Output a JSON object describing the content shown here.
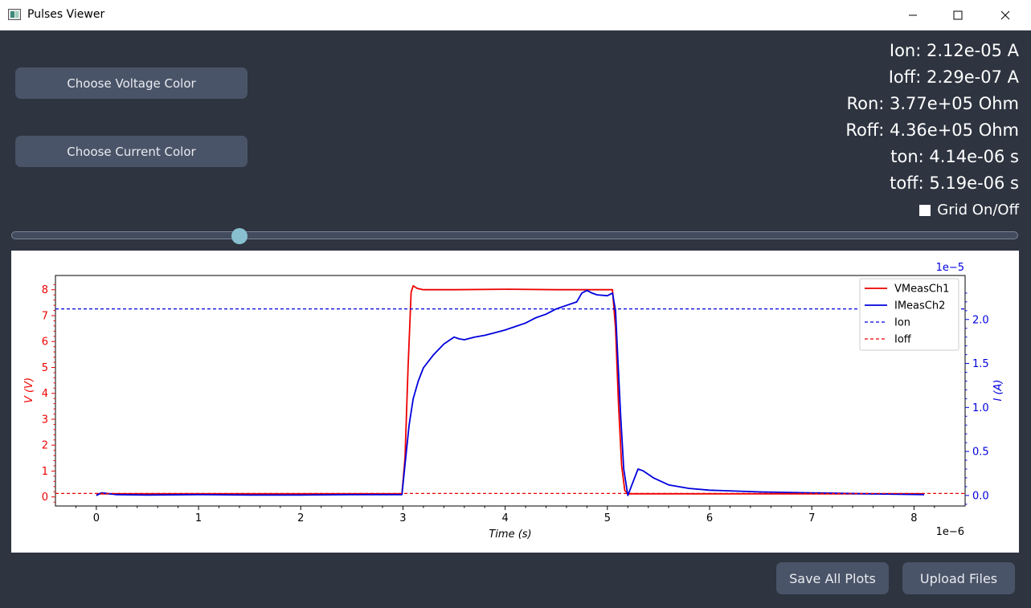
{
  "window": {
    "title": "Pulses Viewer"
  },
  "controls": {
    "voltage_color_label": "Choose Voltage Color",
    "current_color_label": "Choose Current Color",
    "grid_toggle_label": "Grid On/Off",
    "save_all_label": "Save All Plots",
    "upload_label": "Upload Files",
    "slider_value": 0.227
  },
  "stats": {
    "ion": "Ion: 2.12e-05 A",
    "ioff": "Ioff: 2.29e-07 A",
    "ron": "Ron: 3.77e+05 Ohm",
    "roff": "Roff: 4.36e+05 Ohm",
    "ton": "ton: 4.14e-06 s",
    "toff": "toff: 5.19e-06 s"
  },
  "colors": {
    "background": "#2e3440",
    "button": "#4a5468",
    "slider_handle": "#88c0d0",
    "voltage": "#ee0000",
    "current": "#0000dd"
  },
  "chart_data": {
    "type": "line",
    "xlabel": "Time (s)",
    "x_multiplier": "1e−6",
    "ylabel_left": "V (V)",
    "ylabel_right": "I (A)",
    "y_right_multiplier": "1e−5",
    "xlim": [
      -0.4,
      8.5
    ],
    "ylim_left": [
      -0.35,
      8.55
    ],
    "ylim_right": [
      -0.12,
      2.5
    ],
    "x_ticks": [
      0,
      1,
      2,
      3,
      4,
      5,
      6,
      7,
      8
    ],
    "y_left_ticks": [
      0,
      1,
      2,
      3,
      4,
      5,
      6,
      7,
      8
    ],
    "y_right_ticks": [
      "0.0",
      "0.5",
      "1.0",
      "1.5",
      "2.0"
    ],
    "grid": false,
    "legend_position": "top-right",
    "series": [
      {
        "name": "VMeasCh1",
        "axis": "left",
        "color": "#ee0000",
        "x": [
          0,
          1,
          2,
          2.99,
          3.02,
          3.05,
          3.08,
          3.1,
          3.14,
          3.2,
          3.5,
          4,
          4.5,
          5.05,
          5.08,
          5.11,
          5.14,
          5.17,
          5.2,
          5.3,
          6,
          7,
          8.1
        ],
        "y": [
          0.12,
          0.12,
          0.12,
          0.12,
          1.5,
          5.0,
          7.9,
          8.15,
          8.05,
          8.0,
          8.0,
          8.02,
          8.0,
          8.0,
          6.5,
          3.5,
          1.2,
          0.25,
          0.12,
          0.12,
          0.12,
          0.12,
          0.12
        ]
      },
      {
        "name": "IMeasCh2",
        "axis": "right",
        "color": "#0000dd",
        "x": [
          0,
          0.05,
          0.2,
          0.5,
          1,
          1.5,
          2,
          2.5,
          2.99,
          3.02,
          3.06,
          3.1,
          3.15,
          3.2,
          3.3,
          3.4,
          3.5,
          3.55,
          3.6,
          3.7,
          3.8,
          3.9,
          4,
          4.1,
          4.2,
          4.3,
          4.4,
          4.5,
          4.6,
          4.7,
          4.75,
          4.8,
          4.85,
          4.9,
          5.0,
          5.05,
          5.08,
          5.1,
          5.13,
          5.16,
          5.2,
          5.25,
          5.3,
          5.35,
          5.45,
          5.6,
          5.8,
          6,
          6.5,
          7,
          7.5,
          8.1
        ],
        "y": [
          0.0,
          0.03,
          0.01,
          0.005,
          0.01,
          0.005,
          0.005,
          0.01,
          0.01,
          0.35,
          0.8,
          1.1,
          1.3,
          1.45,
          1.6,
          1.72,
          1.8,
          1.78,
          1.77,
          1.8,
          1.82,
          1.85,
          1.88,
          1.92,
          1.96,
          2.02,
          2.06,
          2.12,
          2.16,
          2.2,
          2.3,
          2.33,
          2.3,
          2.28,
          2.27,
          2.3,
          2.1,
          1.6,
          0.9,
          0.3,
          0.0,
          0.15,
          0.3,
          0.28,
          0.2,
          0.12,
          0.08,
          0.06,
          0.04,
          0.03,
          0.02,
          0.01
        ]
      },
      {
        "name": "Ion",
        "axis": "right",
        "color": "#0000dd",
        "style": "dashed",
        "y_const": 2.12
      },
      {
        "name": "Ioff",
        "axis": "right",
        "color": "#ee0000",
        "style": "dashed",
        "y_const": 0.0229
      }
    ]
  }
}
